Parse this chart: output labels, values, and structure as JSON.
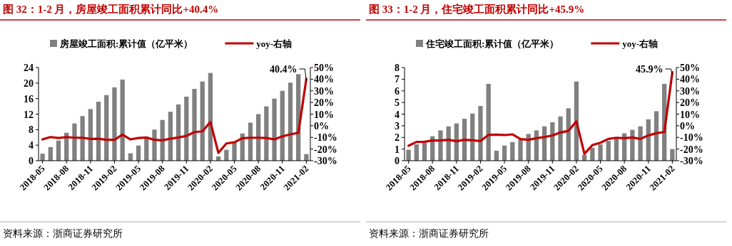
{
  "chart_data": [
    {
      "type": "bar",
      "title": "图 32：1-2 月，房屋竣工面积累计同比+40.4%",
      "categories": [
        "2018-05",
        null,
        null,
        "2018-08",
        null,
        null,
        "2018-11",
        null,
        null,
        "2019-02",
        null,
        null,
        "2019-05",
        null,
        null,
        "2019-08",
        null,
        null,
        "2019-11",
        null,
        null,
        "2020-02",
        null,
        null,
        "2020-05",
        null,
        null,
        "2020-08",
        null,
        null,
        "2020-11",
        null,
        null,
        "2021-02"
      ],
      "series": [
        {
          "name": "房屋竣工面积:累计值（亿平米）",
          "color": "#808080",
          "values": [
            1.8,
            3.5,
            5.2,
            7.2,
            9.6,
            11.5,
            13.3,
            15.2,
            16.9,
            18.9,
            20.9,
            1.9,
            3.9,
            5.8,
            8.0,
            10.5,
            12.6,
            14.5,
            16.5,
            18.5,
            20.4,
            22.6,
            1.1,
            2.8,
            4.9,
            7.0,
            9.8,
            12.0,
            14.0,
            16.0,
            18.0,
            20.1,
            22.3,
            1.7
          ]
        },
        {
          "name": "yoy-右轴",
          "type": "line",
          "axis": "y2",
          "color": "#c00000",
          "values": [
            -11.7,
            -9.7,
            -10.5,
            -9.7,
            -10.3,
            -10.3,
            -11.3,
            -11.1,
            -12.1,
            -12.1,
            -7.6,
            -11.7,
            -10.5,
            -10.1,
            -12.1,
            -12.5,
            -11.1,
            -10.1,
            -8.7,
            -5.4,
            -4.8,
            3.2,
            -23.3,
            -15.2,
            -14.2,
            -10.7,
            -10.3,
            -10.3,
            -10.5,
            -11.7,
            -9.1,
            -7.4,
            -6.0,
            40.4
          ],
          "value_labels": [
            null,
            null,
            null,
            null,
            null,
            null,
            null,
            null,
            null,
            null,
            null,
            null,
            null,
            null,
            null,
            null,
            null,
            null,
            null,
            null,
            null,
            null,
            null,
            null,
            null,
            null,
            null,
            null,
            null,
            null,
            null,
            null,
            null,
            "40.4%"
          ]
        }
      ],
      "ylim": [
        0,
        24
      ],
      "yticks": [
        0,
        4,
        8,
        12,
        16,
        20,
        24
      ],
      "y2lim": [
        -30,
        50
      ],
      "y2ticks": [
        {
          "value": -30,
          "label": "-30%"
        },
        {
          "value": -20,
          "label": "-20%"
        },
        {
          "value": -10,
          "label": "-10%"
        },
        {
          "value": 0,
          "label": "0%"
        },
        {
          "value": 10,
          "label": "10%"
        },
        {
          "value": 20,
          "label": "20%"
        },
        {
          "value": 30,
          "label": "30%"
        },
        {
          "value": 40,
          "label": "40%"
        },
        {
          "value": 50,
          "label": "50%"
        }
      ],
      "legend": "top",
      "grid": false,
      "annotations": [
        "资料来源：浙商证券研究所"
      ]
    },
    {
      "type": "bar",
      "title": "图 33：1-2 月，住宅竣工面积累计同比+45.9%",
      "categories": [
        "2018-05",
        null,
        null,
        "2018-08",
        null,
        null,
        "2018-11",
        null,
        null,
        "2019-02",
        null,
        null,
        "2019-05",
        null,
        null,
        "2019-08",
        null,
        null,
        "2019-11",
        null,
        null,
        "2020-02",
        null,
        null,
        "2020-05",
        null,
        null,
        "2020-08",
        null,
        null,
        "2020-11",
        null,
        null,
        "2021-02"
      ],
      "series": [
        {
          "name": "住宅竣工面积:累计值（亿平米）",
          "color": "#808080",
          "values": [
            0.94,
            1.4,
            1.55,
            2.1,
            2.6,
            2.95,
            3.2,
            3.6,
            4.05,
            4.7,
            6.6,
            0.86,
            1.3,
            1.6,
            1.8,
            2.3,
            2.6,
            2.95,
            3.3,
            3.8,
            4.5,
            6.8,
            0.5,
            1.1,
            1.4,
            1.7,
            2.0,
            2.35,
            2.65,
            2.95,
            3.55,
            4.25,
            6.6,
            1.0
          ]
        },
        {
          "name": "yoy-右轴",
          "type": "line",
          "axis": "y2",
          "color": "#c00000",
          "values": [
            -17.2,
            -13.9,
            -13.7,
            -12.7,
            -12.7,
            -12.1,
            -13.3,
            -12.1,
            -12.5,
            -13.1,
            -7.8,
            -7.6,
            -8.0,
            -7.4,
            -11.5,
            -12.1,
            -10.7,
            -9.7,
            -8.3,
            -5.8,
            -4.4,
            3.8,
            -24.1,
            -16.6,
            -14.6,
            -11.3,
            -10.3,
            -10.7,
            -10.1,
            -11.3,
            -8.3,
            -6.4,
            -5.4,
            45.9
          ],
          "value_labels": [
            null,
            null,
            null,
            null,
            null,
            null,
            null,
            null,
            null,
            null,
            null,
            null,
            null,
            null,
            null,
            null,
            null,
            null,
            null,
            null,
            null,
            null,
            null,
            null,
            null,
            null,
            null,
            null,
            null,
            null,
            null,
            null,
            null,
            "45.9%"
          ]
        }
      ],
      "ylim": [
        0,
        8
      ],
      "yticks": [
        0,
        1,
        2,
        3,
        4,
        5,
        6,
        7,
        8
      ],
      "y2lim": [
        -30,
        50
      ],
      "y2ticks": [
        {
          "value": -30,
          "label": "-30%"
        },
        {
          "value": -20,
          "label": "-20%"
        },
        {
          "value": -10,
          "label": "-10%"
        },
        {
          "value": 0,
          "label": "0%"
        },
        {
          "value": 10,
          "label": "10%"
        },
        {
          "value": 20,
          "label": "20%"
        },
        {
          "value": 30,
          "label": "30%"
        },
        {
          "value": 40,
          "label": "40%"
        },
        {
          "value": 50,
          "label": "50%"
        }
      ],
      "legend": "top",
      "grid": false,
      "annotations": [
        "资料来源：浙商证券研究所"
      ]
    }
  ]
}
